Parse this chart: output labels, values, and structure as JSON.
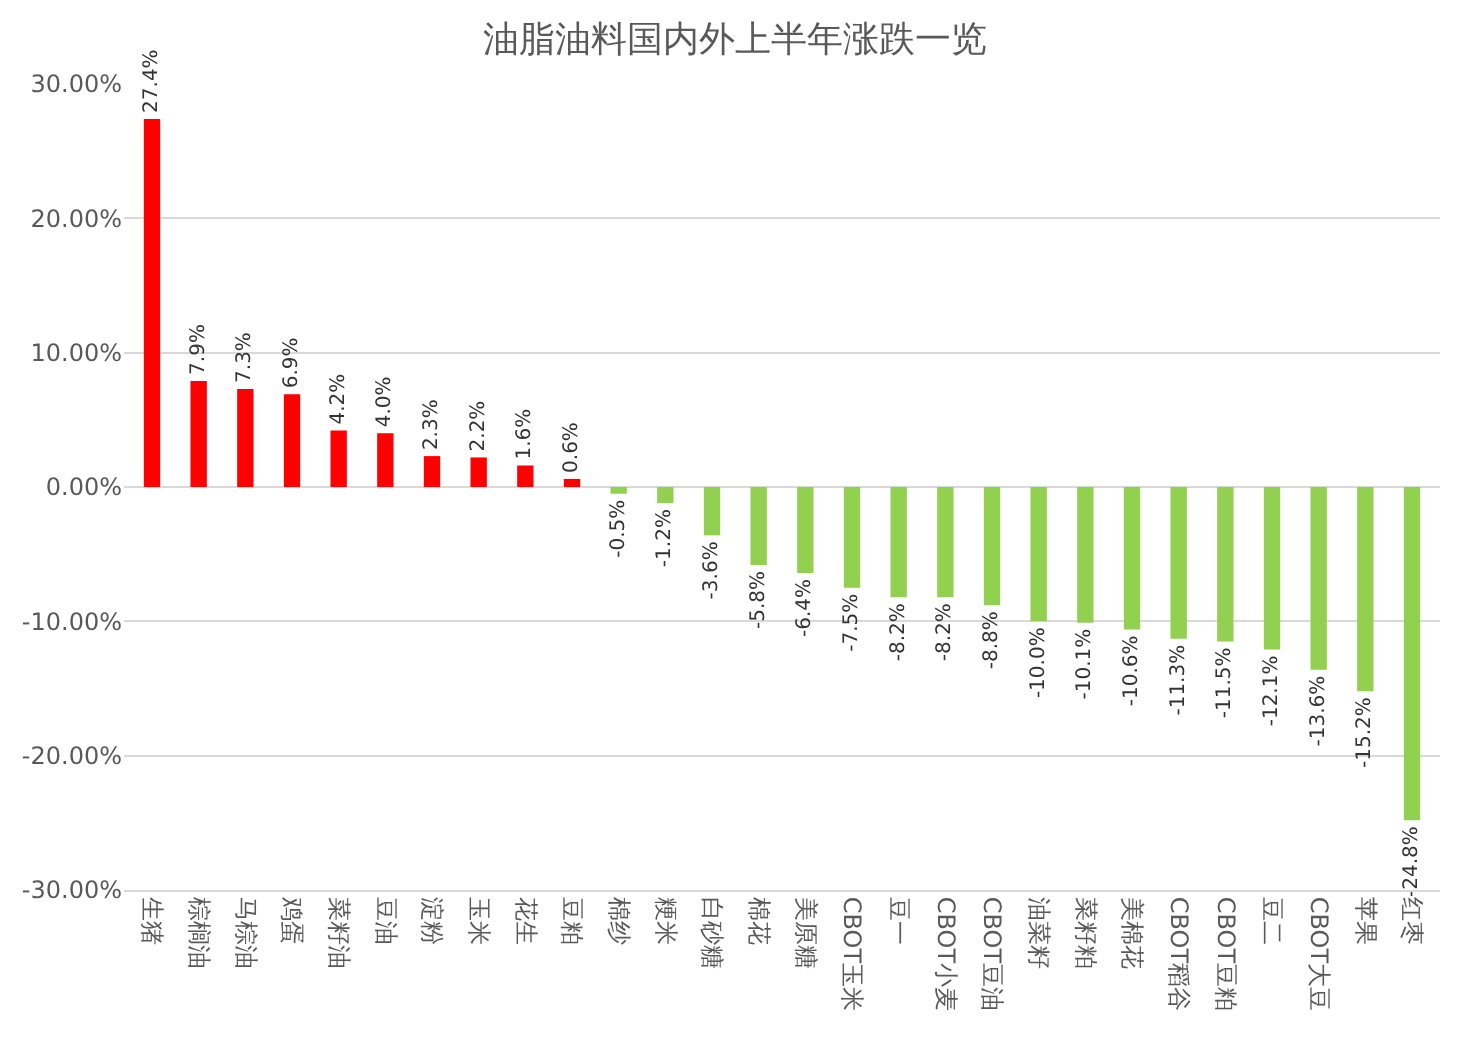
{
  "chart_data": {
    "type": "bar",
    "title": "油脂油料国内外上半年涨跌一览",
    "categories": [
      "生猪",
      "棕榈油",
      "马棕油",
      "鸡蛋",
      "菜籽油",
      "豆油",
      "淀粉",
      "玉米",
      "花生",
      "豆粕",
      "棉纱",
      "粳米",
      "白砂糖",
      "棉花",
      "美原糖",
      "CBOT玉米",
      "豆一",
      "CBOT小麦",
      "CBOT豆油",
      "油菜籽",
      "菜籽粕",
      "美棉花",
      "CBOT稻谷",
      "CBOT豆粕",
      "豆二",
      "CBOT大豆",
      "苹果",
      "红枣"
    ],
    "values": [
      27.4,
      7.9,
      7.3,
      6.9,
      4.2,
      4.0,
      2.3,
      2.2,
      1.6,
      0.6,
      -0.5,
      -1.2,
      -3.6,
      -5.8,
      -6.4,
      -7.5,
      -8.2,
      -8.2,
      -8.8,
      -10.0,
      -10.1,
      -10.6,
      -11.3,
      -11.5,
      -12.1,
      -13.6,
      -15.2,
      -24.8
    ],
    "colors": [
      "#ff0000",
      "#ff0000",
      "#ff0000",
      "#ff0000",
      "#ff0000",
      "#ff0000",
      "#ff0000",
      "#ff0000",
      "#ff0000",
      "#ff0000",
      "#92d050",
      "#92d050",
      "#92d050",
      "#92d050",
      "#92d050",
      "#92d050",
      "#92d050",
      "#92d050",
      "#92d050",
      "#92d050",
      "#92d050",
      "#92d050",
      "#92d050",
      "#92d050",
      "#92d050",
      "#92d050",
      "#92d050",
      "#92d050"
    ],
    "value_labels": [
      "27.4%",
      "7.9%",
      "7.3%",
      "6.9%",
      "4.2%",
      "4.0%",
      "2.3%",
      "2.2%",
      "1.6%",
      "0.6%",
      "-0.5%",
      "-1.2%",
      "-3.6%",
      "-5.8%",
      "-6.4%",
      "-7.5%",
      "-8.2%",
      "-8.2%",
      "-8.8%",
      "-10.0%",
      "-10.1%",
      "-10.6%",
      "-11.3%",
      "-11.5%",
      "-12.1%",
      "-13.6%",
      "-15.2%",
      "-24.8%"
    ],
    "ylim": [
      -30,
      30
    ],
    "yticks": [
      {
        "value": -30,
        "label": "-30.00%"
      },
      {
        "value": -20,
        "label": "-20.00%"
      },
      {
        "value": -10,
        "label": "-10.00%"
      },
      {
        "value": 0,
        "label": "0.00%"
      },
      {
        "value": 10,
        "label": "10.00%"
      },
      {
        "value": 20,
        "label": "20.00%"
      },
      {
        "value": 30,
        "label": "30.00%"
      }
    ],
    "grid": "y"
  }
}
